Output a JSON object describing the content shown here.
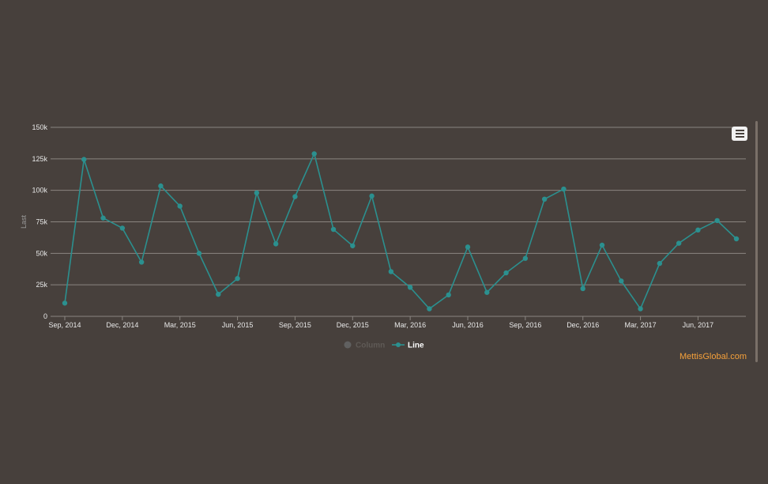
{
  "chart_data": {
    "type": "line",
    "xlabel": "",
    "ylabel": "Last",
    "ylim": [
      0,
      150000
    ],
    "y_ticks": [
      0,
      25000,
      50000,
      75000,
      100000,
      125000,
      150000
    ],
    "y_tick_labels": [
      "0",
      "25k",
      "50k",
      "75k",
      "100k",
      "125k",
      "150k"
    ],
    "x_tick_labels": [
      "Sep, 2014",
      "Dec, 2014",
      "Mar, 2015",
      "Jun, 2015",
      "Sep, 2015",
      "Dec, 2015",
      "Mar, 2016",
      "Jun, 2016",
      "Sep, 2016",
      "Dec, 2016",
      "Mar, 2017",
      "Jun, 2017"
    ],
    "x_tick_index": [
      0,
      3,
      6,
      9,
      12,
      15,
      18,
      21,
      24,
      27,
      30,
      33
    ],
    "x": [
      "Sep, 2014",
      "Oct, 2014",
      "Nov, 2014",
      "Dec, 2014",
      "Jan, 2015",
      "Feb, 2015",
      "Mar, 2015",
      "Apr, 2015",
      "May, 2015",
      "Jun, 2015",
      "Jul, 2015",
      "Aug, 2015",
      "Sep, 2015",
      "Oct, 2015",
      "Nov, 2015",
      "Dec, 2015",
      "Jan, 2016",
      "Feb, 2016",
      "Mar, 2016",
      "Apr, 2016",
      "May, 2016",
      "Jun, 2016",
      "Jul, 2016",
      "Aug, 2016",
      "Sep, 2016",
      "Oct, 2016",
      "Nov, 2016",
      "Dec, 2016",
      "Jan, 2017",
      "Feb, 2017",
      "Mar, 2017",
      "Apr, 2017",
      "May, 2017",
      "Jun, 2017",
      "Jul, 2017",
      "Aug, 2017"
    ],
    "series": [
      {
        "name": "Line",
        "color": "#2b908f",
        "values": [
          10500,
          124500,
          78000,
          70000,
          43000,
          103500,
          87500,
          50000,
          17500,
          30000,
          98000,
          57500,
          95000,
          129000,
          69000,
          56000,
          95500,
          35500,
          23000,
          6000,
          17000,
          55000,
          19000,
          34500,
          46000,
          93000,
          101000,
          22000,
          56500,
          28000,
          6000,
          42000,
          58000,
          68500,
          76000,
          61500
        ]
      }
    ],
    "legend": {
      "position": "bottom-center",
      "items": [
        {
          "label": "Column",
          "color": "#606060",
          "active": false
        },
        {
          "label": "Line",
          "color": "#2b908f",
          "active": true
        }
      ]
    },
    "grid": true
  },
  "colors": {
    "background": "#47403c",
    "grid": "#8a8580",
    "line": "#2b908f",
    "credit": "#f5a03a"
  },
  "menu_icon": "hamburger-menu-icon",
  "credit_text": "MettisGlobal.com"
}
